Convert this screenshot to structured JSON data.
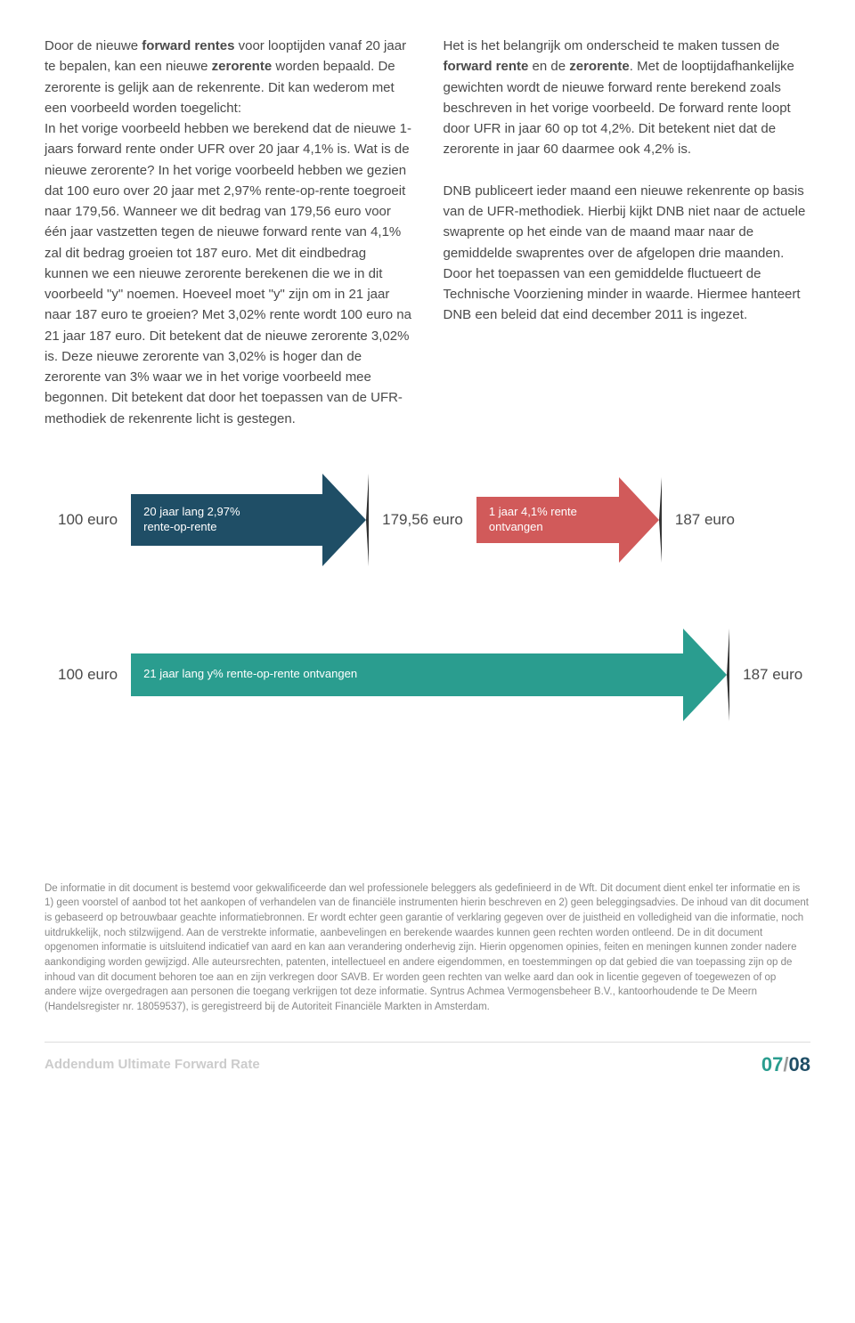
{
  "body": {
    "left_html": "Door de nieuwe <b>forward rentes</b> voor looptijden vanaf 20 jaar te bepalen, kan een nieuwe <b>zerorente</b> worden bepaald. De zerorente is gelijk aan de rekenrente. Dit kan wederom met een voorbeeld worden toegelicht:<br>In het vorige voorbeeld hebben we berekend dat de nieuwe 1-jaars forward rente onder UFR over 20 jaar 4,1% is. Wat is de nieuwe zerorente? In het vorige voorbeeld hebben we gezien dat 100 euro over 20 jaar met 2,97% rente-op-rente toegroeit naar 179,56. Wanneer we dit bedrag van 179,56 euro voor één jaar vastzetten tegen de nieuwe forward rente van 4,1% zal dit bedrag groeien tot 187 euro. Met dit eindbedrag kunnen we een nieuwe zerorente berekenen die we in dit voorbeeld \"y\" noemen. Hoeveel moet \"y\" zijn om in 21 jaar naar 187 euro te groeien? Met 3,02% rente wordt 100 euro na 21 jaar 187 euro. Dit betekent dat de nieuwe zerorente 3,02% is. Deze nieuwe zerorente van 3,02% is hoger dan de zerorente van 3% waar we in het vorige voorbeeld mee begonnen. Dit betekent dat door het toepassen van de UFR-methodiek de rekenrente licht is gestegen.",
    "right_html": "Het is het belangrijk om onderscheid te maken tussen de <b>forward rente</b> en de <b>zerorente</b>. Met de looptijdafhankelijke gewichten wordt de nieuwe forward rente berekend zoals beschreven in het vorige voorbeeld. De forward rente loopt door UFR in jaar 60 op tot 4,2%. Dit betekent niet dat de zerorente in jaar 60 daarmee ook 4,2% is.<br><br>DNB publiceert ieder maand een nieuwe rekenrente op basis van de UFR-methodiek. Hierbij kijkt DNB niet naar de actuele swaprente op het einde van de maand maar naar de gemiddelde swaprentes over de afgelopen drie maanden. Door het toepassen van een gemiddelde fluctueert de Technische Voorziening minder in waarde. Hiermee hanteert DNB een beleid dat eind december 2011 is ingezet."
  },
  "diagram": {
    "row1": {
      "start": "100 euro",
      "arrow1": {
        "label": "20 jaar lang 2,97%\nrente-op-rente",
        "color": "#1f4e66",
        "body_width": 215,
        "body_height": 58,
        "head_size": 52
      },
      "mid": "179,56 euro",
      "arrow2": {
        "label": "1 jaar 4,1% rente\nontvangen",
        "color": "#d15a5a",
        "body_width": 160,
        "body_height": 52,
        "head_size": 48
      },
      "end": "187 euro"
    },
    "row2": {
      "start": "100 euro",
      "arrow": {
        "label": "21 jaar lang y% rente-op-rente ontvangen",
        "color": "#2a9d8f",
        "body_width": 620,
        "body_height": 48,
        "head_size": 52
      },
      "end": "187 euro"
    }
  },
  "disclaimer": "De informatie in dit document is bestemd voor gekwalificeerde dan wel professionele beleggers als gedefinieerd in de Wft. Dit document dient enkel ter informatie en is 1) geen voorstel of aanbod tot het aankopen of verhandelen van de financiële instrumenten hierin beschreven en 2) geen beleggingsadvies. De inhoud van dit document is gebaseerd op betrouwbaar geachte informatiebronnen. Er wordt echter geen garantie of verklaring gegeven over de juistheid en volledigheid van die informatie, noch uitdrukkelijk, noch stilzwijgend. Aan de verstrekte informatie, aanbevelingen en berekende waardes kunnen geen rechten worden ontleend. De in dit document opgenomen informatie is uitsluitend indicatief van aard en kan aan verandering onderhevig zijn. Hierin opgenomen opinies, feiten en meningen kunnen zonder nadere aankondiging worden gewijzigd. Alle auteursrechten, patenten, intellectueel en andere eigendommen, en toestemmingen op dat gebied die van toepassing zijn op de inhoud van dit document behoren toe aan en zijn verkregen door SAVB. Er worden geen rechten van welke aard dan ook in licentie gegeven of toegewezen of op andere wijze overgedragen aan personen die toegang verkrijgen tot deze informatie. Syntrus Achmea Vermogensbeheer B.V., kantoorhoudende te De Meern (Handelsregister nr. 18059537), is geregistreerd bij de Autoriteit Financiële Markten in Amsterdam.",
  "footer": {
    "title": "Addendum Ultimate Forward Rate",
    "page_current": "07",
    "page_sep": "/",
    "page_total": "08",
    "current_color": "#2a9d8f",
    "total_color": "#1f4e66"
  }
}
